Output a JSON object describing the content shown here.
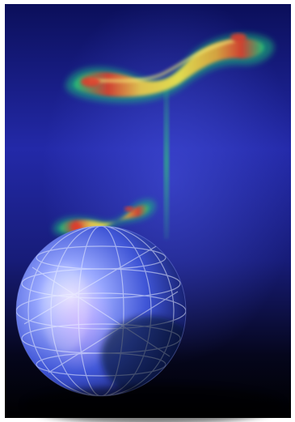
{
  "illustration": {
    "description_icon": "sphere-with-infinity-wave-icon",
    "colors": {
      "background_top": "#0b0f5a",
      "background_mid": "#2a2fb8",
      "background_bottom": "#000000",
      "sphere_light": "#cfd6ff",
      "sphere_mid": "#5b6fe0",
      "sphere_dark": "#1a2378",
      "wave_green": "#25d07a",
      "wave_yellow": "#f5e74a",
      "wave_red": "#e23a2a",
      "beam": "#2fbf7f"
    }
  }
}
